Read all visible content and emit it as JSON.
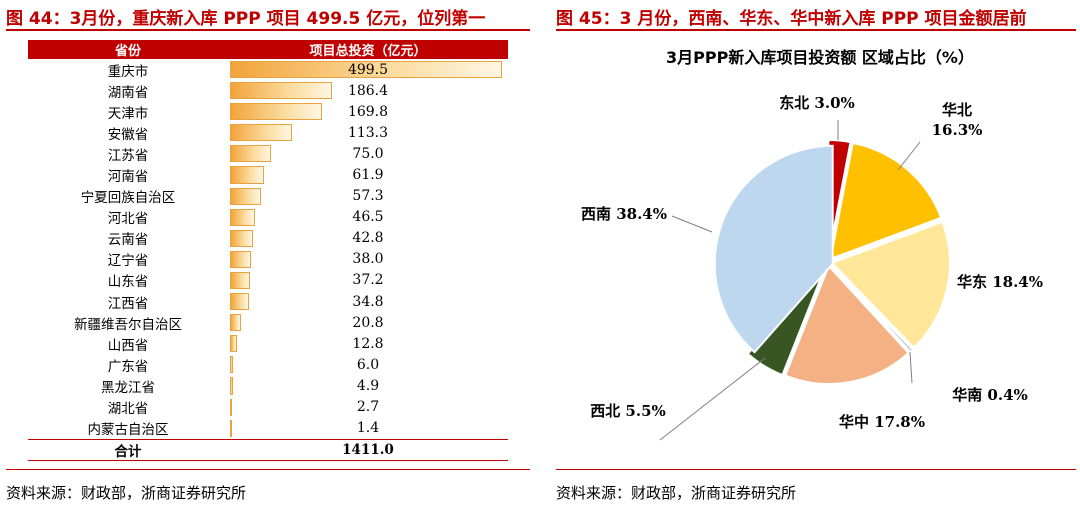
{
  "left": {
    "title": "图 44：3月份，重庆新入库 PPP 项目 499.5 亿元，位列第一",
    "header": {
      "province": "省份",
      "investment": "项目总投资（亿元）"
    },
    "source": "资料来源：财政部，浙商证券研究所"
  },
  "right": {
    "title": "图 45：3 月份，西南、华东、华中新入库 PPP 项目金额居前",
    "source": "资料来源：财政部，浙商证券研究所"
  },
  "chart_data": [
    {
      "type": "bar",
      "orientation": "horizontal",
      "categories": [
        "重庆市",
        "湖南省",
        "天津市",
        "安徽省",
        "江苏省",
        "河南省",
        "宁夏回族自治区",
        "河北省",
        "云南省",
        "辽宁省",
        "山东省",
        "江西省",
        "新疆维吾尔自治区",
        "山西省",
        "广东省",
        "黑龙江省",
        "湖北省",
        "内蒙古自治区"
      ],
      "values": [
        499.5,
        186.4,
        169.8,
        113.3,
        75.0,
        61.9,
        57.3,
        46.5,
        42.8,
        38.0,
        37.2,
        34.8,
        20.8,
        12.8,
        6.0,
        4.9,
        2.7,
        1.4
      ],
      "labels": [
        "499.5",
        "186.4",
        "169.8",
        "113.3",
        "75.0",
        "61.9",
        "57.3",
        "46.5",
        "42.8",
        "38.0",
        "37.2",
        "34.8",
        "20.8",
        "12.8",
        "6.0",
        "4.9",
        "2.7",
        "1.4"
      ],
      "total_label": "合计",
      "total_value": "1411.0",
      "color": "#f2a43b"
    },
    {
      "type": "pie",
      "title": "3月PPP新入库项目投资额 区域占比（%）",
      "slices": [
        {
          "name": "东北",
          "value": 3.0,
          "label": "东北 3.0%",
          "color": "#c00000"
        },
        {
          "name": "华北",
          "value": 16.3,
          "label": "华北 16.3%",
          "color": "#ffc000"
        },
        {
          "name": "华东",
          "value": 18.4,
          "label": "华东 18.4%",
          "color": "#ffe699"
        },
        {
          "name": "华南",
          "value": 0.4,
          "label": "华南 0.4%",
          "color": "#a5a5a5"
        },
        {
          "name": "华中",
          "value": 17.8,
          "label": "华中 17.8%",
          "color": "#f4b183"
        },
        {
          "name": "西北",
          "value": 5.5,
          "label": "西北 5.5%",
          "color": "#375623"
        },
        {
          "name": "西南",
          "value": 38.4,
          "label": "西南 38.4%",
          "color": "#bdd7ee"
        }
      ]
    }
  ]
}
